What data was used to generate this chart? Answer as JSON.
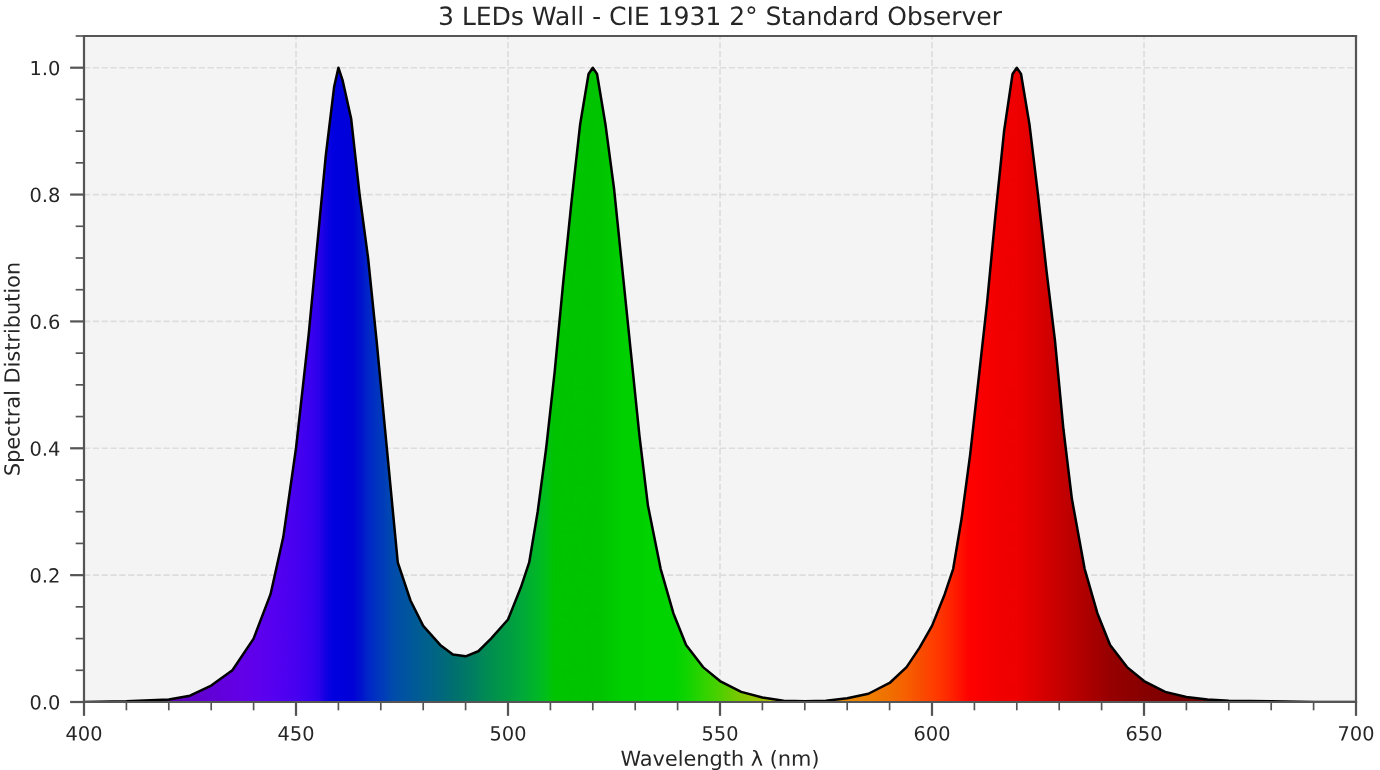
{
  "chart_data": {
    "type": "area",
    "title": "3 LEDs Wall - CIE 1931 2° Standard Observer",
    "xlabel": "Wavelength λ (nm)",
    "ylabel": "Spectral Distribution",
    "xlim": [
      400,
      700
    ],
    "xticks": [
      400,
      450,
      500,
      550,
      600,
      650,
      700
    ],
    "ylim": [
      0,
      1.05
    ],
    "yticks": [
      {
        "value": 0,
        "label": "0.0"
      },
      {
        "value": 0.2,
        "label": "0.2"
      },
      {
        "value": 0.4,
        "label": "0.4"
      },
      {
        "value": 0.6,
        "label": "0.6"
      },
      {
        "value": 0.8,
        "label": "0.8"
      },
      {
        "value": 1.0,
        "label": "1.0"
      }
    ],
    "grid": true,
    "legend": false,
    "x": [
      400,
      410,
      420,
      425,
      430,
      435,
      440,
      444,
      447,
      450,
      453,
      455,
      457,
      459,
      460,
      461,
      463,
      465,
      467,
      469,
      471,
      472,
      474,
      477,
      480,
      484,
      487,
      490,
      493,
      496,
      500,
      503,
      505,
      507,
      509,
      511,
      513,
      515,
      517,
      519,
      520,
      521,
      523,
      525,
      527,
      529,
      531,
      533,
      536,
      539,
      542,
      546,
      550,
      555,
      560,
      565,
      570,
      575,
      580,
      585,
      590,
      594,
      597,
      600,
      603,
      605,
      607,
      609,
      611,
      613,
      615,
      617,
      619,
      620,
      621,
      623,
      625,
      627,
      629,
      631,
      633,
      636,
      639,
      642,
      646,
      650,
      655,
      660,
      665,
      670,
      680,
      690,
      700
    ],
    "series": [
      {
        "color": "#000000",
        "values": [
          0,
          0.001,
          0.004,
          0.01,
          0.026,
          0.05,
          0.1,
          0.17,
          0.26,
          0.4,
          0.58,
          0.72,
          0.86,
          0.97,
          1.0,
          0.98,
          0.92,
          0.8,
          0.7,
          0.57,
          0.43,
          0.36,
          0.22,
          0.16,
          0.12,
          0.09,
          0.075,
          0.072,
          0.08,
          0.1,
          0.13,
          0.18,
          0.22,
          0.3,
          0.4,
          0.52,
          0.66,
          0.79,
          0.91,
          0.99,
          1.0,
          0.99,
          0.91,
          0.81,
          0.68,
          0.55,
          0.42,
          0.31,
          0.21,
          0.14,
          0.09,
          0.055,
          0.033,
          0.016,
          0.007,
          0.002,
          0.001,
          0.002,
          0.006,
          0.013,
          0.03,
          0.055,
          0.085,
          0.12,
          0.17,
          0.21,
          0.29,
          0.39,
          0.51,
          0.63,
          0.77,
          0.9,
          0.99,
          1.0,
          0.99,
          0.91,
          0.8,
          0.68,
          0.57,
          0.43,
          0.32,
          0.21,
          0.14,
          0.09,
          0.055,
          0.033,
          0.016,
          0.008,
          0.004,
          0.002,
          0.001,
          0,
          0
        ],
        "colors": [
          "#4a0080",
          "#5a0098",
          "#5e00b8",
          "#6000c8",
          "#6200d8",
          "#6400e4",
          "#6000ec",
          "#5800f0",
          "#5000f0",
          "#4800f0",
          "#3c00f0",
          "#3000ec",
          "#1000e4",
          "#0000e0",
          "#0000e0",
          "#0000dc",
          "#0000d8",
          "#0010d0",
          "#0028c8",
          "#0034c0",
          "#0040b8",
          "#0048b0",
          "#0050a8",
          "#00589c",
          "#006090",
          "#006880",
          "#007070",
          "#007868",
          "#00845c",
          "#009050",
          "#009c44",
          "#00a83c",
          "#00b030",
          "#00b828",
          "#00c018",
          "#00c400",
          "#00c400",
          "#00c400",
          "#00c400",
          "#00c400",
          "#00c400",
          "#00c400",
          "#00c800",
          "#00cc00",
          "#00d000",
          "#00d000",
          "#00d000",
          "#00d400",
          "#00d400",
          "#00d400",
          "#10d400",
          "#30d400",
          "#50d000",
          "#80c800",
          "#a0c000",
          "#c0b000",
          "#d8a000",
          "#e09000",
          "#e88800",
          "#f08000",
          "#f07000",
          "#f86000",
          "#f85000",
          "#ff4000",
          "#ff3000",
          "#ff2000",
          "#ff1000",
          "#ff0000",
          "#fc0000",
          "#f80000",
          "#f40000",
          "#f00000",
          "#f00000",
          "#f00000",
          "#ec0000",
          "#e40000",
          "#dc0000",
          "#d40000",
          "#cc0000",
          "#c40000",
          "#bc0000",
          "#b00000",
          "#a40000",
          "#980000",
          "#900000",
          "#880000",
          "#800000",
          "#780000",
          "#700000",
          "#680000",
          "#600000",
          "#580000",
          "#500000"
        ]
      }
    ]
  }
}
